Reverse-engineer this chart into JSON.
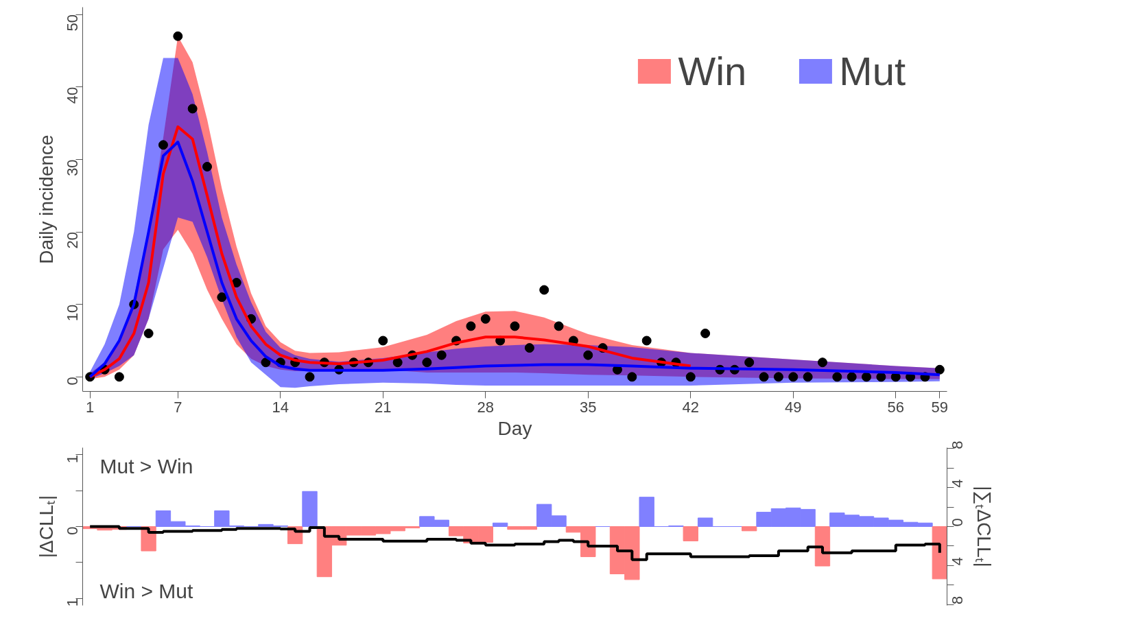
{
  "chart_data": [
    {
      "type": "line",
      "xlabel": "Day",
      "ylabel": "Daily incidence",
      "xlim": [
        0.5,
        59.5
      ],
      "xticks": [
        1,
        7,
        14,
        21,
        28,
        35,
        42,
        49,
        56,
        59
      ],
      "ylim": [
        -2,
        51
      ],
      "yticks": [
        0,
        10,
        20,
        30,
        40,
        50
      ],
      "grid": false,
      "legend": "top right",
      "series": [
        {
          "name": "Win",
          "color": "#ff0000",
          "x": [
            1,
            2,
            3,
            4,
            5,
            6,
            7,
            8,
            9,
            10,
            11,
            12,
            13,
            14,
            15,
            16,
            18,
            21,
            24,
            26,
            28,
            30,
            32,
            35,
            38,
            42,
            49,
            56,
            59
          ],
          "values": [
            0,
            1,
            2.5,
            6,
            13,
            28,
            34.5,
            32.8,
            25,
            17,
            11,
            7,
            4.5,
            3,
            2.3,
            2,
            1.8,
            2.3,
            3.5,
            4.7,
            5.5,
            5.5,
            5.1,
            4.2,
            2.6,
            1.5,
            null,
            null,
            null
          ],
          "lower": [
            -0.3,
            0,
            1,
            3,
            8,
            17.6,
            20.3,
            17,
            12,
            8,
            4.5,
            2.5,
            1.5,
            1,
            0.8,
            0.8,
            0.8,
            1,
            0.6,
            0.6,
            0.6,
            0.6,
            0.5,
            0.3,
            0.2,
            0,
            -0.2,
            -0.3,
            -0.3
          ],
          "upper": [
            0.5,
            2,
            5,
            11,
            20,
            33,
            47,
            43.4,
            35.5,
            26,
            18,
            11.5,
            7,
            4.8,
            3.6,
            3.3,
            3.4,
            4.1,
            5.8,
            7.7,
            9.0,
            9.1,
            8.2,
            5.9,
            4.4,
            3.3,
            2.4,
            1.5,
            1.2
          ]
        },
        {
          "name": "Mut",
          "color": "#0000ff",
          "x": [
            1,
            2,
            3,
            4,
            5,
            6,
            7,
            8,
            9,
            10,
            11,
            12,
            13,
            14,
            15,
            16,
            18,
            21,
            24,
            26,
            28,
            30,
            32,
            35,
            38,
            42,
            49,
            56,
            59
          ],
          "values": [
            0,
            1.8,
            5,
            10,
            20,
            30.5,
            32.4,
            27,
            20,
            13,
            8,
            5,
            2.8,
            1.5,
            1.1,
            0.9,
            0.9,
            0.9,
            1.1,
            1.3,
            1.5,
            1.6,
            1.7,
            1.7,
            1.5,
            1.2,
            1.0,
            0.6,
            0.3
          ],
          "lower": [
            -0.3,
            0.5,
            1.5,
            3,
            8,
            15,
            22,
            21.4,
            16.5,
            10.7,
            5.5,
            2,
            0.3,
            -1.4,
            -1.5,
            -1.3,
            -1.0,
            -0.8,
            -0.9,
            -1.1,
            -1.2,
            -1.2,
            -1.2,
            -1.2,
            -1.2,
            -1.2,
            -0.8,
            -0.7,
            -0.6
          ],
          "upper": [
            0.7,
            4.5,
            10,
            20,
            34.8,
            44,
            44,
            39,
            31,
            22,
            15.5,
            10.3,
            6.2,
            4,
            3,
            2.5,
            2.1,
            2.6,
            3.4,
            3.9,
            4.2,
            4.4,
            4.5,
            4.4,
            4.1,
            3.3,
            2.4,
            1.5,
            1.2
          ]
        },
        {
          "type": "scatter",
          "marker": "circle",
          "color": "#000000",
          "x": [
            1,
            2,
            3,
            4,
            5,
            6,
            7,
            8,
            9,
            10,
            11,
            12,
            13,
            14,
            15,
            16,
            17,
            18,
            19,
            20,
            21,
            22,
            23,
            24,
            25,
            26,
            27,
            28,
            29,
            30,
            31,
            32,
            33,
            34,
            35,
            36,
            37,
            38,
            39,
            40,
            41,
            42,
            43,
            44,
            45,
            46,
            47,
            48,
            49,
            50,
            51,
            52,
            53,
            54,
            55,
            56,
            57,
            58,
            59
          ],
          "values": [
            0,
            1,
            0,
            10,
            6,
            32,
            47,
            37,
            29,
            11,
            13,
            8,
            2,
            2,
            2,
            0,
            2,
            1,
            2,
            2,
            5,
            2,
            3,
            2,
            3,
            5,
            7,
            8,
            5,
            7,
            4,
            12,
            7,
            5,
            3,
            4,
            1,
            0,
            5,
            2,
            2,
            0,
            6,
            1,
            1,
            2,
            0,
            0,
            0,
            0,
            2,
            0,
            0,
            0,
            0,
            0,
            0,
            0,
            1
          ]
        }
      ]
    },
    {
      "type": "bar",
      "ylabel": "|ΔCLLₜ|",
      "y2label": "|∑ₜΔCLLₜ|",
      "xlim": [
        0.5,
        59.5
      ],
      "ylim": [
        -1.1,
        1.1
      ],
      "yticks": [
        {
          "value": -1,
          "label": "1"
        },
        {
          "value": -0.5,
          "label": null
        },
        0,
        {
          "value": 0.5,
          "label": null
        },
        1
      ],
      "y2lim": [
        -8.1,
        8.1
      ],
      "y2ticks": [
        {
          "value": -8,
          "label": "8"
        },
        {
          "value": -6,
          "label": null
        },
        {
          "value": -4,
          "label": "4"
        },
        {
          "value": -2,
          "label": null
        },
        0,
        {
          "value": 2,
          "label": null
        },
        4,
        {
          "value": 6,
          "label": null
        },
        8
      ],
      "tick_labels": "y",
      "grid": false,
      "annotations": [
        "Mut > Win",
        "Win > Mut"
      ],
      "series": [
        {
          "x": [
            1,
            2,
            3,
            4,
            5,
            6,
            7,
            8,
            9,
            10,
            11,
            12,
            13,
            14,
            15,
            16,
            17,
            18,
            19,
            20,
            21,
            22,
            23,
            24,
            25,
            26,
            27,
            28,
            29,
            30,
            31,
            32,
            33,
            34,
            35,
            36,
            37,
            38,
            39,
            40,
            41,
            42,
            43,
            44,
            45,
            46,
            47,
            48,
            49,
            50,
            51,
            52,
            53,
            54,
            55,
            56,
            57,
            58,
            59
          ],
          "values": [
            -0.03,
            -0.05,
            -0.04,
            0,
            -0.34,
            0.22,
            0.07,
            0.01,
            0,
            0.22,
            0.01,
            0,
            0.03,
            0.01,
            -0.24,
            0.49,
            -0.7,
            -0.26,
            -0.12,
            -0.12,
            -0.1,
            -0.06,
            -0.02,
            0.14,
            0.09,
            -0.13,
            -0.23,
            -0.22,
            0.05,
            -0.04,
            -0.04,
            0.31,
            0.15,
            -0.08,
            -0.42,
            0,
            -0.66,
            -0.74,
            0.41,
            0,
            0.01,
            -0.2,
            0.12,
            0,
            0,
            -0.06,
            0.2,
            0.25,
            0.26,
            0.24,
            -0.55,
            0.19,
            0.16,
            0.14,
            0.12,
            0.09,
            0.06,
            0.05,
            -0.73
          ],
          "colors": [
            "#ff8080",
            "#ff8080",
            "#ff8080",
            "#8080ff",
            "#ff8080",
            "#8080ff",
            "#8080ff",
            "#8080ff",
            "#8080ff",
            "#8080ff",
            "#8080ff",
            "#8080ff",
            "#8080ff",
            "#8080ff",
            "#ff8080",
            "#8080ff",
            "#ff8080",
            "#ff8080",
            "#ff8080",
            "#ff8080",
            "#ff8080",
            "#ff8080",
            "#ff8080",
            "#8080ff",
            "#8080ff",
            "#ff8080",
            "#ff8080",
            "#ff8080",
            "#8080ff",
            "#ff8080",
            "#ff8080",
            "#8080ff",
            "#8080ff",
            "#ff8080",
            "#ff8080",
            "#8080ff",
            "#ff8080",
            "#ff8080",
            "#8080ff",
            "#8080ff",
            "#8080ff",
            "#ff8080",
            "#8080ff",
            "#8080ff",
            "#8080ff",
            "#ff8080",
            "#8080ff",
            "#8080ff",
            "#8080ff",
            "#8080ff",
            "#ff8080",
            "#8080ff",
            "#8080ff",
            "#8080ff",
            "#8080ff",
            "#8080ff",
            "#8080ff",
            "#8080ff",
            "#ff8080"
          ]
        },
        {
          "type": "step",
          "axis": "y2",
          "color": "#000000",
          "x": [
            1,
            3,
            5,
            6,
            8,
            10,
            11,
            14,
            15,
            16,
            17,
            18,
            21,
            24,
            26,
            27,
            28,
            30,
            32,
            33,
            34,
            35,
            36,
            37,
            38,
            39,
            42,
            46,
            48,
            50,
            51,
            53,
            56,
            58,
            59
          ],
          "values": [
            0,
            -0.2,
            -0.6,
            -0.5,
            -0.4,
            -0.3,
            -0.2,
            -0.25,
            -0.5,
            -0.1,
            -1.0,
            -1.3,
            -1.5,
            -1.3,
            -1.4,
            -1.7,
            -1.9,
            -1.8,
            -1.55,
            -1.4,
            -1.55,
            -2.0,
            -2.0,
            -2.5,
            -3.4,
            -2.8,
            -3.1,
            -3.0,
            -2.5,
            -2.1,
            -2.7,
            -2.5,
            -1.9,
            -1.8,
            -2.7
          ]
        }
      ]
    }
  ]
}
